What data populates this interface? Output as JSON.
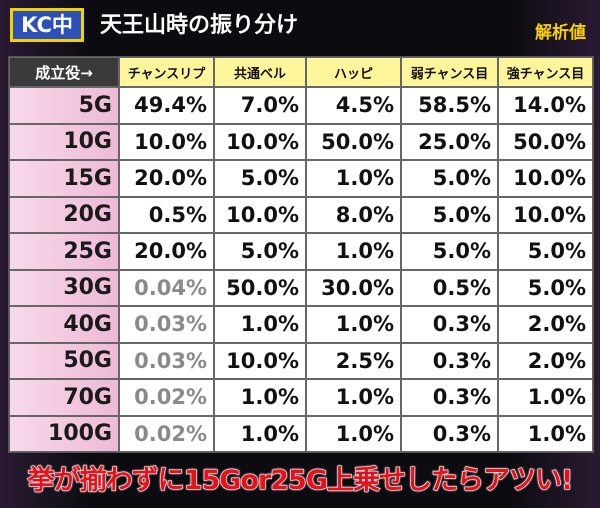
{
  "header": {
    "badge": "KC中",
    "title": "天王山時の振り分け",
    "note": "解析値"
  },
  "table": {
    "corner": "成立役→",
    "columns": [
      "チャンスリプ",
      "共通ベル",
      "ハッピ",
      "弱チャンス目",
      "強チャンス目"
    ],
    "rows": [
      {
        "label": "5G",
        "cells": [
          "49.4%",
          "7.0%",
          "4.5%",
          "58.5%",
          "14.0%"
        ]
      },
      {
        "label": "10G",
        "cells": [
          "10.0%",
          "10.0%",
          "50.0%",
          "25.0%",
          "50.0%"
        ]
      },
      {
        "label": "15G",
        "cells": [
          "20.0%",
          "5.0%",
          "1.0%",
          "5.0%",
          "10.0%"
        ]
      },
      {
        "label": "20G",
        "cells": [
          "0.5%",
          "10.0%",
          "8.0%",
          "5.0%",
          "10.0%"
        ]
      },
      {
        "label": "25G",
        "cells": [
          "20.0%",
          "5.0%",
          "1.0%",
          "5.0%",
          "5.0%"
        ]
      },
      {
        "label": "30G",
        "cells": [
          "0.04%",
          "50.0%",
          "30.0%",
          "0.5%",
          "5.0%"
        ]
      },
      {
        "label": "40G",
        "cells": [
          "0.03%",
          "1.0%",
          "1.0%",
          "0.3%",
          "2.0%"
        ]
      },
      {
        "label": "50G",
        "cells": [
          "0.03%",
          "10.0%",
          "2.5%",
          "0.3%",
          "2.0%"
        ]
      },
      {
        "label": "70G",
        "cells": [
          "0.02%",
          "1.0%",
          "1.0%",
          "0.3%",
          "1.0%"
        ]
      },
      {
        "label": "100G",
        "cells": [
          "0.02%",
          "1.0%",
          "1.0%",
          "0.3%",
          "1.0%"
        ]
      }
    ]
  },
  "footer": {
    "text": "挙が揃わずに15Gor25G上乗せしたらアツい!"
  }
}
